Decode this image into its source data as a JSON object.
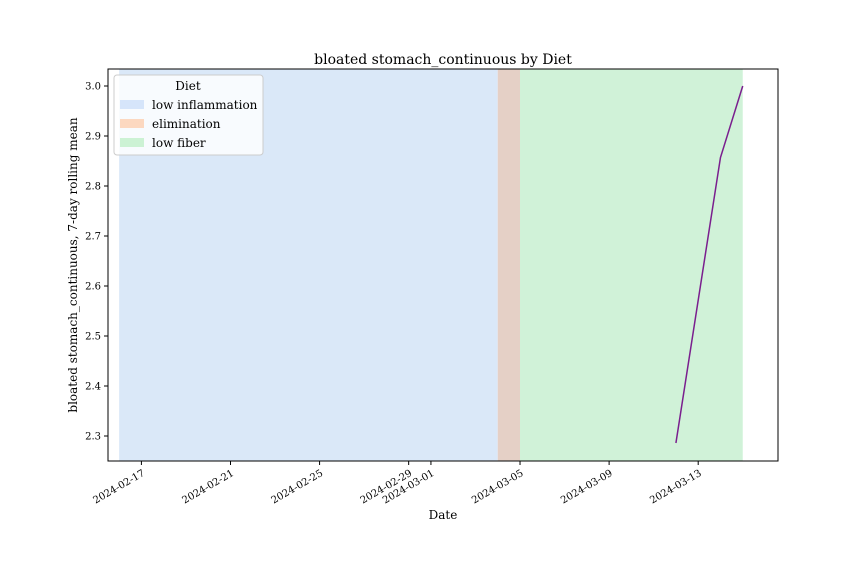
{
  "chart_data": {
    "type": "line",
    "title": "bloated stomach_continuous by Diet",
    "xlabel": "Date",
    "ylabel": "bloated stomach_continuous, 7-day rolling mean",
    "xlim": [
      "2024-02-15T12:00",
      "2024-03-16T14:00"
    ],
    "ylim": [
      2.25,
      3.034
    ],
    "x_ticks": [
      "2024-02-17",
      "2024-02-21",
      "2024-02-25",
      "2024-02-29",
      "2024-03-01",
      "2024-03-05",
      "2024-03-09",
      "2024-03-13"
    ],
    "y_ticks": [
      2.3,
      2.4,
      2.5,
      2.6,
      2.7,
      2.8,
      2.9,
      3.0
    ],
    "y_tick_labels": [
      "2.3",
      "2.4",
      "2.5",
      "2.6",
      "2.7",
      "2.8",
      "2.9",
      "3.0"
    ],
    "legend": {
      "title": "Diet",
      "position": "top-left"
    },
    "regions": [
      {
        "name": "low inflammation",
        "start": "2024-02-16",
        "end": "2024-03-04",
        "color": "#dae8f8"
      },
      {
        "name": "elimination",
        "start": "2024-03-04",
        "end": "2024-03-05",
        "color": "#e5d0c6"
      },
      {
        "name": "low fiber",
        "start": "2024-03-05",
        "end": "2024-03-15",
        "color": "#d0f2d8"
      }
    ],
    "legend_swatch_colors": [
      "#d6e5fa",
      "#fcd8c0",
      "#ccf2d4"
    ],
    "series": [
      {
        "color": "#7a1f8e",
        "x": [
          "2024-03-12",
          "2024-03-14",
          "2024-03-15"
        ],
        "y": [
          2.286,
          2.857,
          3.0
        ]
      }
    ]
  }
}
